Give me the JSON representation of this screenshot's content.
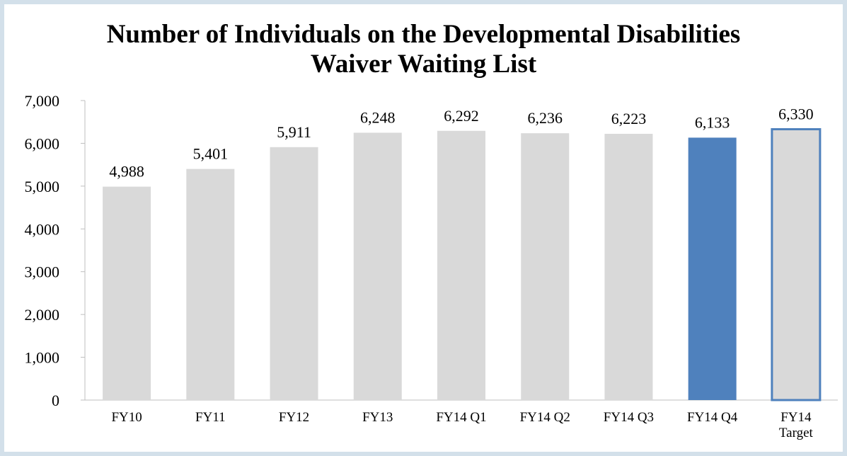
{
  "chart_data": {
    "type": "bar",
    "title": "Number of Individuals on the Developmental Disabilities\nWaiver Waiting List",
    "categories": [
      "FY10",
      "FY11",
      "FY12",
      "FY13",
      "FY14 Q1",
      "FY14 Q2",
      "FY14 Q3",
      "FY14 Q4",
      "FY14\nTarget"
    ],
    "values": [
      4988,
      5401,
      5911,
      6248,
      6292,
      6236,
      6223,
      6133,
      6330
    ],
    "value_labels": [
      "4,988",
      "5,401",
      "5,911",
      "6,248",
      "6,292",
      "6,236",
      "6,223",
      "6,133",
      "6,330"
    ],
    "colors": [
      "#d9d9d9",
      "#d9d9d9",
      "#d9d9d9",
      "#d9d9d9",
      "#d9d9d9",
      "#d9d9d9",
      "#d9d9d9",
      "#4f81bd",
      "#d9d9d9"
    ],
    "edgecolors": [
      null,
      null,
      null,
      null,
      null,
      null,
      null,
      null,
      "#4f81bd"
    ],
    "ylim": [
      0,
      7000
    ],
    "yticks": [
      {
        "value": 0,
        "label": "0"
      },
      {
        "value": 1000,
        "label": "1,000"
      },
      {
        "value": 2000,
        "label": "2,000"
      },
      {
        "value": 3000,
        "label": "3,000"
      },
      {
        "value": 4000,
        "label": "4,000"
      },
      {
        "value": 5000,
        "label": "5,000"
      },
      {
        "value": 6000,
        "label": "6,000"
      },
      {
        "value": 7000,
        "label": "7,000"
      }
    ],
    "grid": false
  }
}
